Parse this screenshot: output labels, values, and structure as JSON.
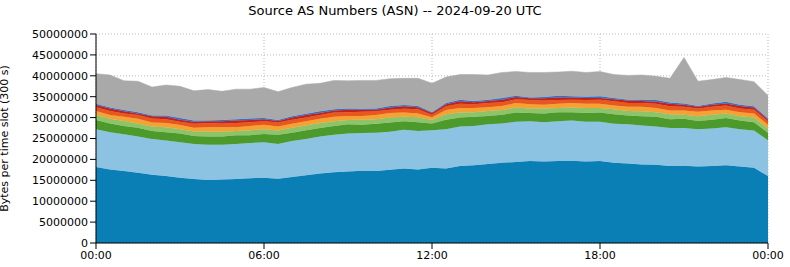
{
  "chart_data": {
    "type": "area",
    "title": "Source AS Numbers (ASN) -- 2024-09-20 UTC",
    "y_label": "Bytes per time slot (300 s)",
    "stacked": true,
    "grid": true,
    "x": [
      0,
      0.5,
      1,
      1.5,
      2,
      2.5,
      3,
      3.5,
      4,
      4.5,
      5,
      5.5,
      6,
      6.5,
      7,
      7.5,
      8,
      8.5,
      9,
      9.5,
      10,
      10.5,
      11,
      11.5,
      12,
      12.5,
      13,
      13.5,
      14,
      14.5,
      15,
      15.5,
      16,
      16.5,
      17,
      17.5,
      18,
      18.5,
      19,
      19.5,
      20,
      20.5,
      21,
      21.5,
      22,
      22.5,
      23,
      23.5,
      24
    ],
    "xlim": [
      0,
      24
    ],
    "xticks": [
      {
        "value": 0,
        "label": "00:00"
      },
      {
        "value": 6,
        "label": "06:00"
      },
      {
        "value": 12,
        "label": "12:00"
      },
      {
        "value": 18,
        "label": "18:00"
      },
      {
        "value": 24,
        "label": "00:00"
      }
    ],
    "ylim": [
      0,
      50000000
    ],
    "yticks": [
      0,
      5000000,
      10000000,
      15000000,
      20000000,
      25000000,
      30000000,
      35000000,
      40000000,
      45000000,
      50000000
    ],
    "series": [
      {
        "color": "#0a7fb5",
        "values": [
          18200000,
          17600000,
          17200000,
          16800000,
          16300000,
          16000000,
          15600000,
          15300000,
          15100000,
          15200000,
          15300000,
          15500000,
          15600000,
          15400000,
          15800000,
          16200000,
          16600000,
          16900000,
          17100000,
          17300000,
          17200000,
          17500000,
          17800000,
          17600000,
          18000000,
          17800000,
          18400000,
          18600000,
          18900000,
          19200000,
          19400000,
          19600000,
          19500000,
          19600000,
          19700000,
          19500000,
          19600000,
          19200000,
          19000000,
          18800000,
          18700000,
          18400000,
          18500000,
          18300000,
          18400000,
          18600000,
          18300000,
          18000000,
          16000000
        ]
      },
      {
        "color": "#8cc3e3",
        "values": [
          9000000,
          8900000,
          8800000,
          8700000,
          8600000,
          8500000,
          8500000,
          8400000,
          8400000,
          8300000,
          8400000,
          8400000,
          8500000,
          8300000,
          8600000,
          8700000,
          8900000,
          9000000,
          9100000,
          9000000,
          9200000,
          9100000,
          9300000,
          9200000,
          9000000,
          9400000,
          9500000,
          9400000,
          9500000,
          9400000,
          9600000,
          9500000,
          9400000,
          9500000,
          9600000,
          9500000,
          9400000,
          9300000,
          9400000,
          9300000,
          9200000,
          9100000,
          9000000,
          8900000,
          9000000,
          9100000,
          8900000,
          8900000,
          8600000
        ]
      },
      {
        "color": "#4d9a2c",
        "values": [
          2200000,
          2100000,
          2000000,
          2100000,
          1900000,
          2000000,
          2100000,
          1900000,
          2000000,
          2000000,
          2100000,
          1900000,
          2000000,
          2200000,
          2000000,
          2100000,
          2000000,
          2100000,
          2200000,
          2000000,
          2100000,
          2200000,
          2000000,
          2100000,
          1600000,
          2300000,
          2100000,
          2200000,
          2000000,
          2100000,
          2200000,
          2000000,
          2100000,
          2200000,
          2000000,
          2100000,
          2200000,
          2300000,
          2100000,
          2200000,
          2300000,
          2100000,
          2200000,
          2000000,
          2100000,
          2200000,
          2100000,
          2000000,
          1800000
        ]
      },
      {
        "color": "#8dc46a",
        "values": [
          1200000,
          1100000,
          1200000,
          1000000,
          1100000,
          1200000,
          1000000,
          1100000,
          1200000,
          1100000,
          1000000,
          1200000,
          1100000,
          1000000,
          1200000,
          1100000,
          1200000,
          1100000,
          1000000,
          1200000,
          1100000,
          1200000,
          1100000,
          1200000,
          800000,
          1300000,
          1200000,
          1100000,
          1200000,
          1100000,
          1200000,
          1100000,
          1200000,
          1000000,
          1100000,
          1200000,
          1100000,
          1200000,
          1100000,
          1200000,
          1100000,
          1200000,
          1000000,
          1100000,
          1200000,
          1100000,
          1000000,
          1100000,
          1000000
        ]
      },
      {
        "color": "#f4a233",
        "values": [
          1000000,
          900000,
          1000000,
          1100000,
          900000,
          1000000,
          1000000,
          900000,
          1000000,
          1100000,
          900000,
          1000000,
          1100000,
          1000000,
          900000,
          1000000,
          1000000,
          1100000,
          1000000,
          900000,
          1000000,
          1100000,
          1000000,
          900000,
          700000,
          1000000,
          1100000,
          1000000,
          900000,
          1000000,
          1100000,
          1000000,
          900000,
          1000000,
          1100000,
          1000000,
          1000000,
          900000,
          1000000,
          1100000,
          1000000,
          900000,
          1000000,
          1100000,
          1000000,
          900000,
          1000000,
          1000000,
          900000
        ]
      },
      {
        "color": "#e8581c",
        "values": [
          900000,
          1000000,
          800000,
          900000,
          1000000,
          900000,
          800000,
          900000,
          1000000,
          900000,
          1000000,
          900000,
          800000,
          900000,
          1000000,
          900000,
          900000,
          1000000,
          900000,
          1000000,
          900000,
          800000,
          900000,
          1000000,
          600000,
          900000,
          1000000,
          900000,
          1000000,
          900000,
          900000,
          1000000,
          1000000,
          900000,
          800000,
          900000,
          1000000,
          1000000,
          900000,
          900000,
          1000000,
          1000000,
          900000,
          800000,
          900000,
          1000000,
          900000,
          900000,
          800000
        ]
      },
      {
        "color": "#c0231a",
        "values": [
          500000,
          600000,
          500000,
          400000,
          500000,
          600000,
          500000,
          500000,
          400000,
          500000,
          600000,
          500000,
          500000,
          400000,
          500000,
          600000,
          500000,
          500000,
          600000,
          500000,
          400000,
          500000,
          600000,
          500000,
          400000,
          500000,
          600000,
          500000,
          500000,
          600000,
          500000,
          400000,
          500000,
          600000,
          500000,
          500000,
          400000,
          500000,
          600000,
          500000,
          500000,
          600000,
          500000,
          400000,
          500000,
          500000,
          600000,
          500000,
          400000
        ]
      },
      {
        "color": "#3a6fc4",
        "values": [
          300000,
          200000,
          300000,
          300000,
          200000,
          300000,
          400000,
          300000,
          200000,
          300000,
          300000,
          400000,
          300000,
          200000,
          300000,
          300000,
          400000,
          300000,
          300000,
          200000,
          300000,
          400000,
          300000,
          300000,
          200000,
          300000,
          400000,
          300000,
          300000,
          400000,
          300000,
          200000,
          300000,
          400000,
          300000,
          300000,
          400000,
          300000,
          200000,
          300000,
          400000,
          300000,
          300000,
          200000,
          300000,
          400000,
          300000,
          300000,
          300000
        ]
      },
      {
        "color": "#a9a9a9",
        "values": [
          7200000,
          7800000,
          7000000,
          7400000,
          6800000,
          7300000,
          7600000,
          7100000,
          7400000,
          6900000,
          7200000,
          7000000,
          7300000,
          6800000,
          6900000,
          7100000,
          6700000,
          6900000,
          6600000,
          6800000,
          6700000,
          6500000,
          6400000,
          6600000,
          6900000,
          6200000,
          6000000,
          6300000,
          5900000,
          6100000,
          5800000,
          6000000,
          5900000,
          5700000,
          6000000,
          5800000,
          5900000,
          5600000,
          5800000,
          5900000,
          5700000,
          5800000,
          11000000,
          5900000,
          5700000,
          5800000,
          6000000,
          5900000,
          5500000
        ]
      }
    ]
  }
}
